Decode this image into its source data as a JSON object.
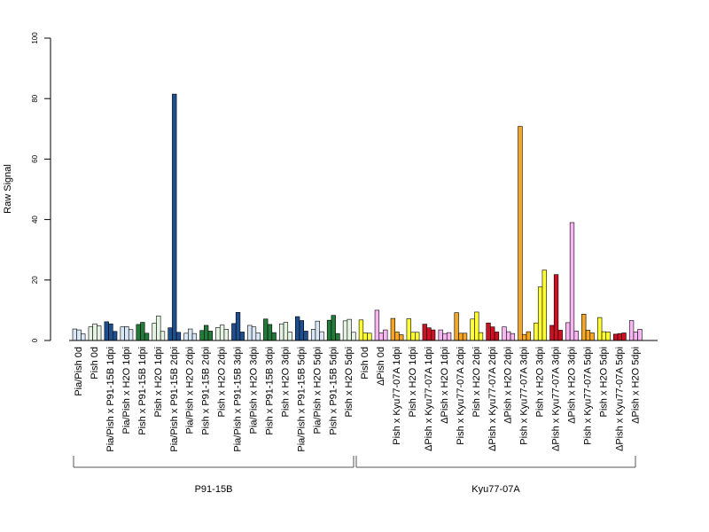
{
  "chart_data": {
    "type": "bar",
    "ylabel": "Raw Signal",
    "ylim": [
      0,
      100
    ],
    "yticks": [
      0,
      20,
      40,
      60,
      80,
      100
    ],
    "replicates_per_category": 3,
    "categories": [
      {
        "label": "Pia/Pish 0d",
        "color": "#d9e6f5",
        "values": [
          3.8,
          3.5,
          2.2
        ]
      },
      {
        "label": "Pish 0d",
        "color": "#e5f3e2",
        "values": [
          4.5,
          5.5,
          4.8
        ]
      },
      {
        "label": "Pia/Pish x P91-15B 1dpi",
        "color": "#1f4f8f",
        "values": [
          6.2,
          5.5,
          3.0
        ]
      },
      {
        "label": "Pia/Pish x H2O 1dpi",
        "color": "#d9e6f5",
        "values": [
          4.5,
          4.6,
          3.6
        ]
      },
      {
        "label": "Pish x P91-15B 1dpi",
        "color": "#237a3a",
        "values": [
          5.3,
          6.0,
          2.4
        ]
      },
      {
        "label": "Pish x H2O 1dpi",
        "color": "#e5f3e2",
        "values": [
          5.7,
          8.1,
          3.0
        ]
      },
      {
        "label": "Pia/Pish x P91-15B 2dpi",
        "color": "#1f4f8f",
        "values": [
          4.2,
          81.5,
          2.7
        ]
      },
      {
        "label": "Pia/Pish x H2O 2dpi",
        "color": "#d9e6f5",
        "values": [
          2.4,
          3.8,
          2.3
        ]
      },
      {
        "label": "Pish x P91-15B 2dpi",
        "color": "#237a3a",
        "values": [
          3.3,
          5.0,
          3.1
        ]
      },
      {
        "label": "Pish x H2O 2dpi",
        "color": "#e5f3e2",
        "values": [
          4.3,
          5.1,
          3.7
        ]
      },
      {
        "label": "Pia/Pish x P91-15B 3dpi",
        "color": "#1f4f8f",
        "values": [
          5.6,
          9.3,
          2.8
        ]
      },
      {
        "label": "Pia/Pish x H2O 3dpi",
        "color": "#d9e6f5",
        "values": [
          5.0,
          4.5,
          2.5
        ]
      },
      {
        "label": "Pish x P91-15B 3dpi",
        "color": "#237a3a",
        "values": [
          7.1,
          5.3,
          2.6
        ]
      },
      {
        "label": "Pish x H2O 3dpi",
        "color": "#e5f3e2",
        "values": [
          5.5,
          6.0,
          2.8
        ]
      },
      {
        "label": "Pia/Pish x P91-15B 5dpi",
        "color": "#1f4f8f",
        "values": [
          7.9,
          6.6,
          3.1
        ]
      },
      {
        "label": "Pia/Pish x H2O 5dpi",
        "color": "#d9e6f5",
        "values": [
          3.7,
          6.4,
          2.9
        ]
      },
      {
        "label": "Pish x P91-15B 5dpi",
        "color": "#237a3a",
        "values": [
          6.7,
          8.3,
          2.3
        ]
      },
      {
        "label": "Pish x H2O 5dpi",
        "color": "#e5f3e2",
        "values": [
          6.5,
          7.0,
          2.7
        ]
      },
      {
        "label": "Pish 0d",
        "color": "#ffff33",
        "values": [
          6.8,
          2.5,
          2.4
        ]
      },
      {
        "label": "ΔPish 0d",
        "color": "#f7b6f2",
        "values": [
          10.0,
          2.5,
          3.5
        ]
      },
      {
        "label": "Pish x Kyu77-07A 1dpi",
        "color": "#f5a623",
        "values": [
          7.3,
          2.8,
          1.9
        ]
      },
      {
        "label": "Pish x H2O 1dpi",
        "color": "#ffff33",
        "values": [
          7.2,
          2.7,
          2.7
        ]
      },
      {
        "label": "ΔPish x Kyu77-07A 1dpi",
        "color": "#cc1122",
        "values": [
          5.4,
          4.2,
          3.5
        ]
      },
      {
        "label": "ΔPish x H2O 1dpi",
        "color": "#f7b6f2",
        "values": [
          3.5,
          2.3,
          2.6
        ]
      },
      {
        "label": "Pish x Kyu77-07A 2dpi",
        "color": "#f5a623",
        "values": [
          9.2,
          2.4,
          2.4
        ]
      },
      {
        "label": "Pish x H2O 2dpi",
        "color": "#ffff33",
        "values": [
          7.1,
          9.4,
          2.6
        ]
      },
      {
        "label": "ΔPish x Kyu77-07A 2dpi",
        "color": "#cc1122",
        "values": [
          5.8,
          4.5,
          2.8
        ]
      },
      {
        "label": "ΔPish x H2O 2dpi",
        "color": "#f7b6f2",
        "values": [
          4.5,
          2.9,
          2.3
        ]
      },
      {
        "label": "Pish x Kyu77-07A 3dpi",
        "color": "#f5a623",
        "values": [
          70.8,
          2.0,
          2.9
        ]
      },
      {
        "label": "Pish x H2O 3dpi",
        "color": "#ffff33",
        "values": [
          5.8,
          17.7,
          23.3
        ]
      },
      {
        "label": "ΔPish x Kyu77-07A 3dpi",
        "color": "#cc1122",
        "values": [
          5.0,
          21.8,
          3.4
        ]
      },
      {
        "label": "ΔPish x H2O 3dpi",
        "color": "#f7b6f2",
        "values": [
          5.9,
          39.0,
          3.1
        ]
      },
      {
        "label": "Pish x Kyu77-07A 5dpi",
        "color": "#f5a623",
        "values": [
          8.7,
          3.4,
          2.5
        ]
      },
      {
        "label": "Pish x H2O 5dpi",
        "color": "#ffff33",
        "values": [
          7.6,
          2.9,
          2.8
        ]
      },
      {
        "label": "ΔPish x Kyu77-07A 5dpi",
        "color": "#cc1122",
        "values": [
          2.1,
          2.3,
          2.5
        ]
      },
      {
        "label": "ΔPish x H2O 5dpi",
        "color": "#f7b6f2",
        "values": [
          6.6,
          2.8,
          3.7
        ]
      }
    ],
    "groups": [
      {
        "label": "P91-15B",
        "from": 0,
        "to": 17
      },
      {
        "label": "Kyu77-07A",
        "from": 18,
        "to": 35
      }
    ],
    "legend": "none",
    "grid": false
  }
}
